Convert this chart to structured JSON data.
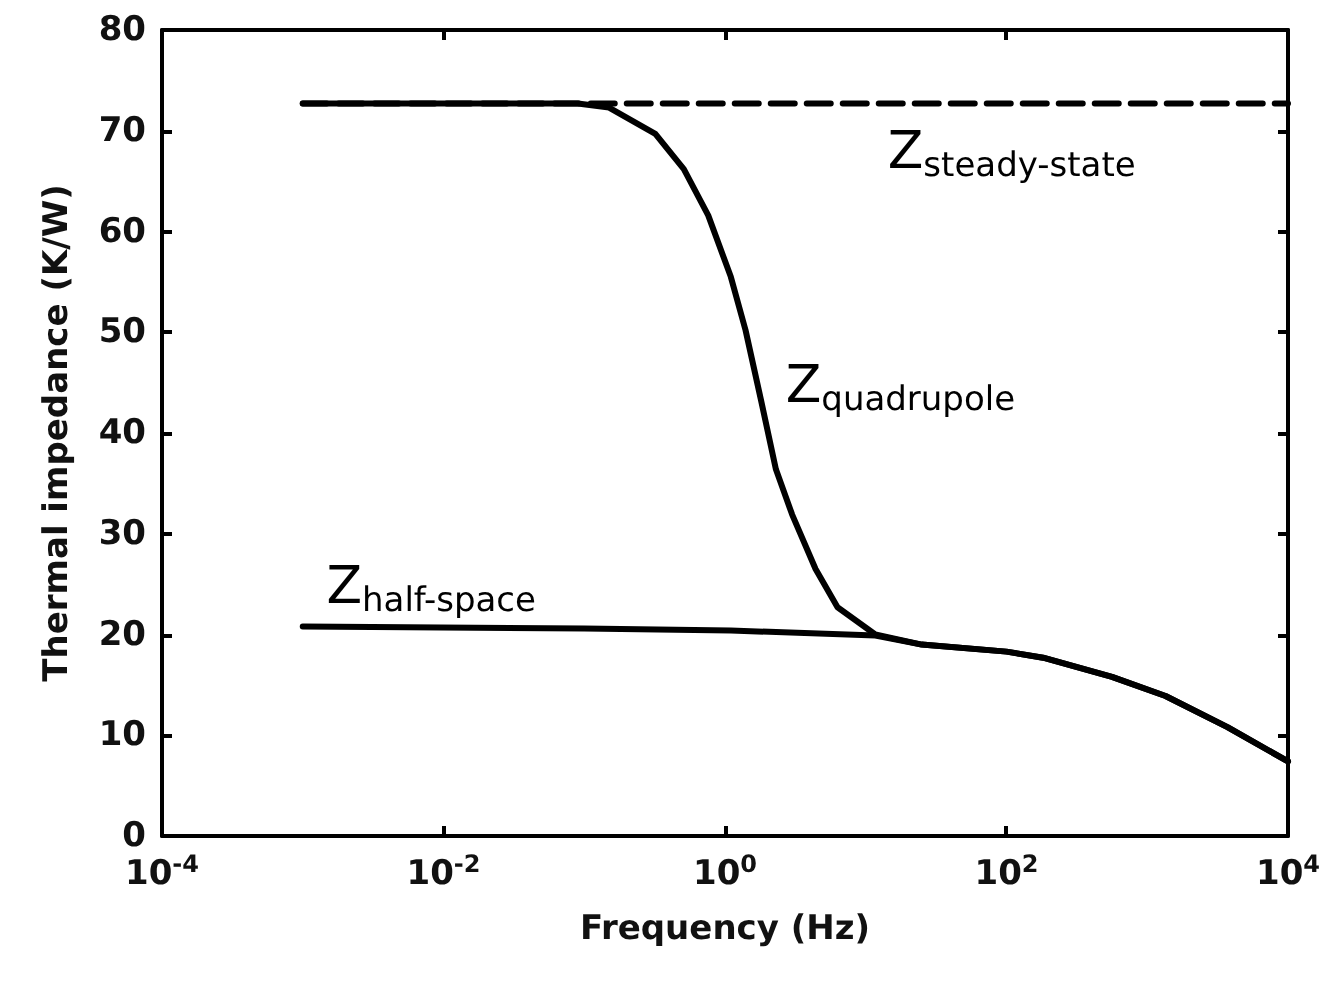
{
  "chart_data": {
    "type": "line",
    "xlabel": "Frequency (Hz)",
    "ylabel": "Thermal impedance (K/W)",
    "log": "x",
    "grid": false,
    "legend": false,
    "marker": "none",
    "xlim": [
      0.0001,
      10000
    ],
    "ylim": [
      0,
      80
    ],
    "xticks": [
      {
        "value": 0.0001,
        "label": "10$^{-4}$"
      },
      {
        "value": 0.01,
        "label": "10$^{-2}$"
      },
      {
        "value": 1,
        "label": "10$^{0}$"
      },
      {
        "value": 100,
        "label": "10$^{2}$"
      },
      {
        "value": 10000,
        "label": "10$^{4}$"
      }
    ],
    "yticks": [
      0,
      10,
      20,
      30,
      40,
      50,
      60,
      70,
      80
    ],
    "series": [
      {
        "color": "#000000",
        "line_style": "dashed",
        "x": [
          0.001,
          10000
        ],
        "values": [
          72.7,
          72.7
        ]
      },
      {
        "color": "#000000",
        "line_style": "solid",
        "x": [
          0.001,
          0.01,
          0.09,
          0.15,
          0.32,
          0.51,
          0.76,
          1.1,
          1.4,
          1.8,
          2.3,
          3.0,
          4.4,
          6.3,
          11.7,
          25,
          100,
          182,
          562,
          1349,
          3715,
          10000
        ],
        "values": [
          72.7,
          72.7,
          72.7,
          72.3,
          69.7,
          66.2,
          61.6,
          55.5,
          50.2,
          43.3,
          36.4,
          31.9,
          26.5,
          22.7,
          20.0,
          19.0,
          18.3,
          17.7,
          15.8,
          13.9,
          10.8,
          7.4
        ]
      },
      {
        "color": "#000000",
        "line_style": "solid",
        "x": [
          0.001,
          0.1,
          1.1,
          11.7,
          25,
          100,
          182,
          562,
          1349,
          3715,
          10000
        ],
        "values": [
          20.8,
          20.6,
          20.4,
          19.9,
          19.0,
          18.3,
          17.7,
          15.8,
          13.9,
          10.8,
          7.4
        ]
      }
    ],
    "annotations": [
      "Z$_{steady-state}$",
      "Z$_{quadrupole}$",
      "Z$_{half-space}$"
    ]
  }
}
